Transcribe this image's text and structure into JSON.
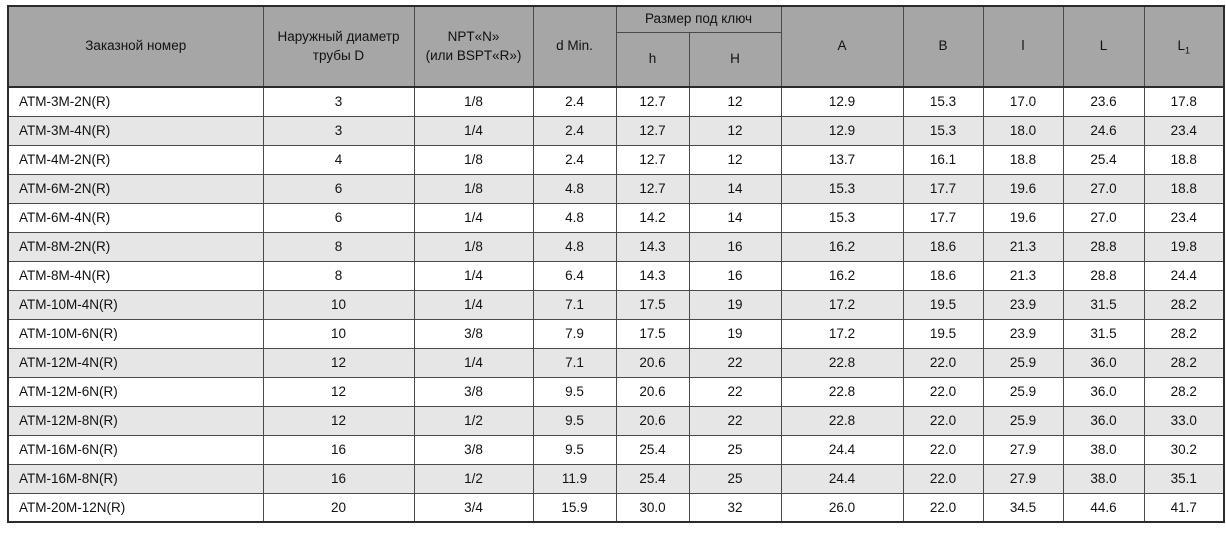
{
  "table": {
    "headers": {
      "order_number": "Заказной номер",
      "outer_diameter": "Наружный диаметр\nтрубы D",
      "npt": "NPT«N»\n(или BSPT«R»)",
      "d_min": "d Min.",
      "wrench_size_group": "Размер под ключ",
      "h_lower": "h",
      "h_upper": "H",
      "a": "A",
      "b": "B",
      "l_lower": "l",
      "l_upper": "L",
      "l1_base": "L",
      "l1_sub": "1"
    },
    "rows": [
      [
        "ATM-3M-2N(R)",
        "3",
        "1/8",
        "2.4",
        "12.7",
        "12",
        "12.9",
        "15.3",
        "17.0",
        "23.6",
        "17.8"
      ],
      [
        "ATM-3M-4N(R)",
        "3",
        "1/4",
        "2.4",
        "12.7",
        "12",
        "12.9",
        "15.3",
        "18.0",
        "24.6",
        "23.4"
      ],
      [
        "ATM-4M-2N(R)",
        "4",
        "1/8",
        "2.4",
        "12.7",
        "12",
        "13.7",
        "16.1",
        "18.8",
        "25.4",
        "18.8"
      ],
      [
        "ATM-6M-2N(R)",
        "6",
        "1/8",
        "4.8",
        "12.7",
        "14",
        "15.3",
        "17.7",
        "19.6",
        "27.0",
        "18.8"
      ],
      [
        "ATM-6M-4N(R)",
        "6",
        "1/4",
        "4.8",
        "14.2",
        "14",
        "15.3",
        "17.7",
        "19.6",
        "27.0",
        "23.4"
      ],
      [
        "ATM-8M-2N(R)",
        "8",
        "1/8",
        "4.8",
        "14.3",
        "16",
        "16.2",
        "18.6",
        "21.3",
        "28.8",
        "19.8"
      ],
      [
        "ATM-8M-4N(R)",
        "8",
        "1/4",
        "6.4",
        "14.3",
        "16",
        "16.2",
        "18.6",
        "21.3",
        "28.8",
        "24.4"
      ],
      [
        "ATM-10M-4N(R)",
        "10",
        "1/4",
        "7.1",
        "17.5",
        "19",
        "17.2",
        "19.5",
        "23.9",
        "31.5",
        "28.2"
      ],
      [
        "ATM-10M-6N(R)",
        "10",
        "3/8",
        "7.9",
        "17.5",
        "19",
        "17.2",
        "19.5",
        "23.9",
        "31.5",
        "28.2"
      ],
      [
        "ATM-12M-4N(R)",
        "12",
        "1/4",
        "7.1",
        "20.6",
        "22",
        "22.8",
        "22.0",
        "25.9",
        "36.0",
        "28.2"
      ],
      [
        "ATM-12M-6N(R)",
        "12",
        "3/8",
        "9.5",
        "20.6",
        "22",
        "22.8",
        "22.0",
        "25.9",
        "36.0",
        "28.2"
      ],
      [
        "ATM-12M-8N(R)",
        "12",
        "1/2",
        "9.5",
        "20.6",
        "22",
        "22.8",
        "22.0",
        "25.9",
        "36.0",
        "33.0"
      ],
      [
        "ATM-16M-6N(R)",
        "16",
        "3/8",
        "9.5",
        "25.4",
        "25",
        "24.4",
        "22.0",
        "27.9",
        "38.0",
        "30.2"
      ],
      [
        "ATM-16M-8N(R)",
        "16",
        "1/2",
        "11.9",
        "25.4",
        "25",
        "24.4",
        "22.0",
        "27.9",
        "38.0",
        "35.1"
      ],
      [
        "ATM-20M-12N(R)",
        "20",
        "3/4",
        "15.9",
        "30.0",
        "32",
        "26.0",
        "22.0",
        "34.5",
        "44.6",
        "41.7"
      ]
    ]
  },
  "colors": {
    "header_bg": "#a6a6a6",
    "stripe_bg": "#e7e6e6",
    "border_inner": "#4a4a4a",
    "border_outer": "#2b2b2b",
    "text": "#111111"
  }
}
